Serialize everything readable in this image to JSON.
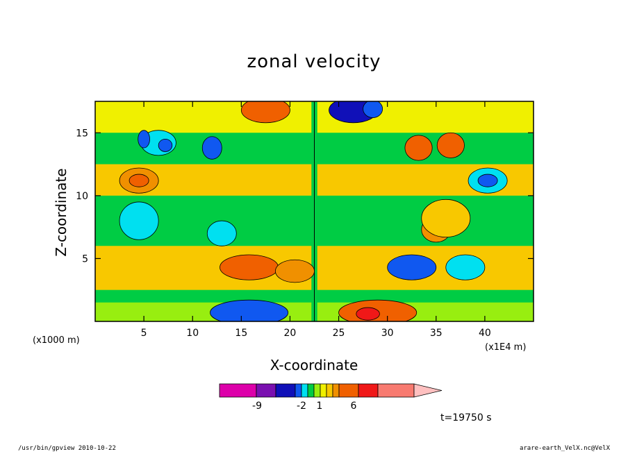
{
  "chart_data": {
    "type": "heatmap",
    "title": "zonal velocity",
    "xlabel": "X-coordinate",
    "ylabel": "Z-coordinate",
    "x_unit_label": "(x1000 m)",
    "x_scale_label": "(x1E4 m)",
    "xlim": [
      0,
      45
    ],
    "ylim": [
      0,
      17.5
    ],
    "x_ticks": [
      5,
      10,
      15,
      20,
      25,
      30,
      35,
      40
    ],
    "y_ticks": [
      5,
      10,
      15
    ],
    "colorbar": {
      "labels": [
        "-9",
        "-2",
        "1",
        "6"
      ],
      "colors": [
        "#dd00aa",
        "#7a10b0",
        "#1010b8",
        "#1058f0",
        "#00e0f0",
        "#00cc44",
        "#98ee10",
        "#f0f000",
        "#f8c800",
        "#f09000",
        "#f06000",
        "#f01818",
        "#f87a70",
        "#ffc0c0"
      ]
    },
    "features": [
      {
        "x": 4.5,
        "y": 11.2,
        "rx": 2.0,
        "ry": 1.0,
        "level": 9
      },
      {
        "x": 4.5,
        "y": 11.2,
        "rx": 1.0,
        "ry": 0.5,
        "level": 10
      },
      {
        "x": 40.3,
        "y": 11.2,
        "rx": 2.0,
        "ry": 1.0,
        "level": 4
      },
      {
        "x": 40.3,
        "y": 11.2,
        "rx": 1.0,
        "ry": 0.5,
        "level": 3
      },
      {
        "x": 6.5,
        "y": 14.2,
        "rx": 1.8,
        "ry": 1.0,
        "level": 4
      },
      {
        "x": 5.0,
        "y": 14.5,
        "rx": 0.6,
        "ry": 0.7,
        "level": 3
      },
      {
        "x": 7.2,
        "y": 14.0,
        "rx": 0.7,
        "ry": 0.5,
        "level": 3
      },
      {
        "x": 12.0,
        "y": 13.8,
        "rx": 1.0,
        "ry": 0.9,
        "level": 3
      },
      {
        "x": 33.2,
        "y": 13.8,
        "rx": 1.4,
        "ry": 1.0,
        "level": 10
      },
      {
        "x": 36.5,
        "y": 14.0,
        "rx": 1.4,
        "ry": 1.0,
        "level": 10
      },
      {
        "x": 32.5,
        "y": 4.3,
        "rx": 2.5,
        "ry": 1.0,
        "level": 3
      },
      {
        "x": 38.0,
        "y": 4.3,
        "rx": 2.0,
        "ry": 1.0,
        "level": 4
      },
      {
        "x": 13.0,
        "y": 7.0,
        "rx": 1.5,
        "ry": 1.0,
        "level": 4
      },
      {
        "x": 4.5,
        "y": 8.0,
        "rx": 2.0,
        "ry": 1.5,
        "level": 4
      },
      {
        "x": 15.8,
        "y": 4.3,
        "rx": 3.0,
        "ry": 1.0,
        "level": 10
      },
      {
        "x": 20.5,
        "y": 4.0,
        "rx": 2.0,
        "ry": 0.9,
        "level": 9
      },
      {
        "x": 35.0,
        "y": 7.3,
        "rx": 1.5,
        "ry": 1.0,
        "level": 9
      },
      {
        "x": 36.0,
        "y": 8.2,
        "rx": 2.5,
        "ry": 1.5,
        "level": 8
      },
      {
        "x": 17.5,
        "y": 16.8,
        "rx": 2.5,
        "ry": 1.0,
        "level": 10
      },
      {
        "x": 26.5,
        "y": 16.8,
        "rx": 2.5,
        "ry": 1.0,
        "level": 2
      },
      {
        "x": 28.5,
        "y": 16.9,
        "rx": 1.0,
        "ry": 0.7,
        "level": 3
      },
      {
        "x": 15.8,
        "y": 0.7,
        "rx": 4.0,
        "ry": 1.0,
        "level": 3
      },
      {
        "x": 29.0,
        "y": 0.7,
        "rx": 4.0,
        "ry": 1.0,
        "level": 10
      },
      {
        "x": 28.0,
        "y": 0.6,
        "rx": 1.2,
        "ry": 0.5,
        "level": 11
      }
    ]
  },
  "time_label": "t=19750 s",
  "footer_left": "/usr/bin/gpview   2010-10-22",
  "footer_right": "arare-earth_VelX.nc@VelX"
}
